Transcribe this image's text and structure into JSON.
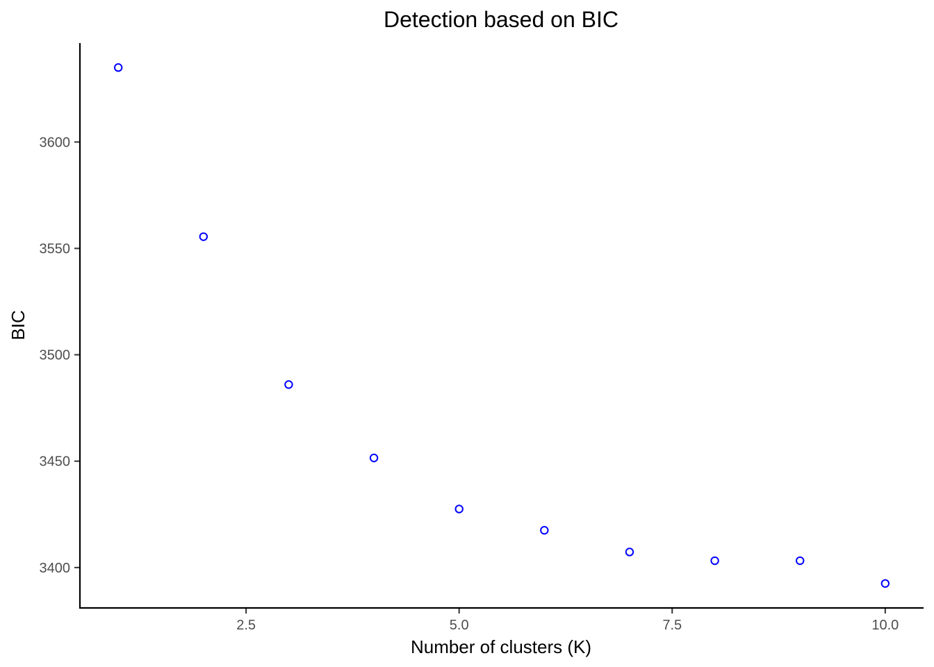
{
  "chart_data": {
    "type": "scatter",
    "title": "Detection based on  BIC",
    "xlabel": "Number of clusters (K)",
    "ylabel": "BIC",
    "x": [
      1,
      2,
      3,
      4,
      5,
      6,
      7,
      8,
      9,
      10
    ],
    "y": [
      3635,
      3555.5,
      3486,
      3451.5,
      3427.5,
      3417.5,
      3407.3,
      3403.2,
      3403.2,
      3392.5
    ],
    "xlim": [
      0.55,
      10.45
    ],
    "ylim": [
      3381,
      3646.5
    ],
    "xticks": [
      2.5,
      5.0,
      7.5,
      10.0
    ],
    "xtick_labels": [
      "2.5",
      "5.0",
      "7.5",
      "10.0"
    ],
    "yticks": [
      3400,
      3450,
      3500,
      3550,
      3600
    ],
    "ytick_labels": [
      "3400",
      "3450",
      "3500",
      "3550",
      "3600"
    ],
    "grid": false,
    "point_color": "#0000ff",
    "point_style": "open-circle"
  }
}
